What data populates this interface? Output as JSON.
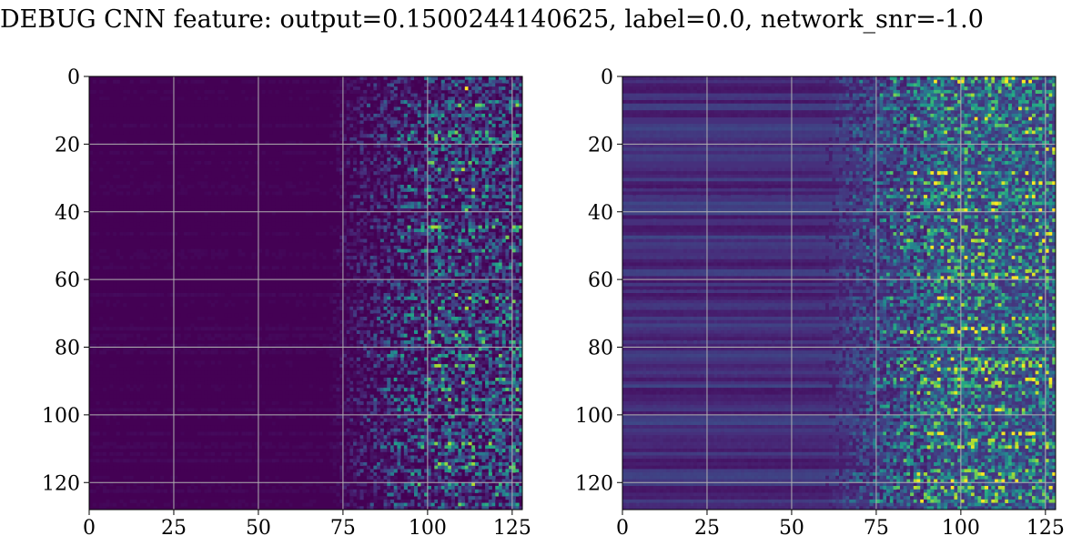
{
  "title": "DEBUG CNN feature: output=0.1500244140625, label=0.0, network_snr=-1.0",
  "chart_data": [
    {
      "type": "heatmap",
      "title": "",
      "xlabel": "",
      "ylabel": "",
      "xlim": [
        0,
        128
      ],
      "ylim": [
        128,
        0
      ],
      "xticks": [
        "0",
        "25",
        "50",
        "75",
        "100",
        "125"
      ],
      "yticks": [
        "0",
        "20",
        "40",
        "60",
        "80",
        "100",
        "120"
      ],
      "colormap": "viridis",
      "grid": true,
      "grid_color": "#b0b0b0",
      "shape": [
        128,
        128
      ],
      "profile": {
        "low_region_cols": [
          0,
          70
        ],
        "low_region_level": 0.0,
        "transition_cols": [
          70,
          100
        ],
        "high_region_cols": [
          100,
          128
        ],
        "high_region_mean": 0.25,
        "row_banding": 0.02
      },
      "hotspots": [
        {
          "x": 111,
          "y": 3,
          "v": 1.0
        },
        {
          "x": 110,
          "y": 27,
          "v": 0.9
        },
        {
          "x": 108,
          "y": 30,
          "v": 0.85
        },
        {
          "x": 113,
          "y": 33,
          "v": 1.0
        },
        {
          "x": 111,
          "y": 39,
          "v": 0.8
        },
        {
          "x": 108,
          "y": 64,
          "v": 0.9
        },
        {
          "x": 110,
          "y": 90,
          "v": 0.85
        },
        {
          "x": 113,
          "y": 112,
          "v": 0.75
        }
      ]
    },
    {
      "type": "heatmap",
      "title": "",
      "xlabel": "",
      "ylabel": "",
      "xlim": [
        0,
        128
      ],
      "ylim": [
        128,
        0
      ],
      "xticks": [
        "0",
        "25",
        "50",
        "75",
        "100",
        "125"
      ],
      "yticks": [
        "0",
        "20",
        "40",
        "60",
        "80",
        "100",
        "120"
      ],
      "colormap": "viridis",
      "grid": true,
      "grid_color": "#b0b0b0",
      "shape": [
        128,
        128
      ],
      "profile": {
        "low_region_cols": [
          0,
          60
        ],
        "low_region_level": 0.14,
        "transition_cols": [
          60,
          90
        ],
        "high_region_cols": [
          90,
          128
        ],
        "high_region_mean": 0.3,
        "row_banding": 0.08
      },
      "hotspots": [
        {
          "x": 116,
          "y": 59,
          "v": 1.0
        },
        {
          "x": 84,
          "y": 40,
          "v": 0.85
        },
        {
          "x": 87,
          "y": 76,
          "v": 0.8
        },
        {
          "x": 91,
          "y": 82,
          "v": 0.75
        },
        {
          "x": 85,
          "y": 103,
          "v": 0.8
        },
        {
          "x": 104,
          "y": 68,
          "v": 0.7
        }
      ]
    }
  ]
}
